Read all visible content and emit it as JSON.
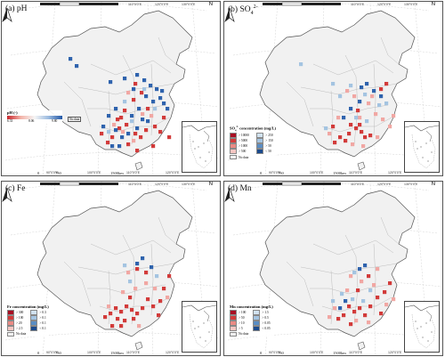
{
  "panels": [
    {
      "id": "ph",
      "title_main": "(a) pH",
      "title_sup": "",
      "legend": {
        "title": "pH (-)",
        "type": "gradient",
        "ticks": [
          "6.33",
          "8.06",
          "9.80"
        ],
        "colors": [
          "#c8242b",
          "#f3b4a9",
          "#f5f5f5",
          "#9bbbe0",
          "#2458a6"
        ],
        "nodata": "No data"
      },
      "cells": {
        "red": [
          [
            148,
            90
          ],
          [
            155,
            100
          ],
          [
            146,
            108
          ],
          [
            162,
            118
          ],
          [
            138,
            136
          ],
          [
            130,
            140
          ],
          [
            148,
            146
          ],
          [
            154,
            150
          ],
          [
            160,
            142
          ],
          [
            170,
            138
          ],
          [
            176,
            144
          ],
          [
            140,
            158
          ],
          [
            122,
            150
          ],
          [
            117,
            156
          ],
          [
            136,
            120
          ],
          [
            168,
            160
          ],
          [
            180,
            128
          ],
          [
            186,
            150
          ],
          [
            150,
            165
          ],
          [
            128,
            130
          ],
          [
            132,
            128
          ],
          [
            110,
            146
          ]
        ],
        "blue": [
          [
            75,
            62
          ],
          [
            82,
            70
          ],
          [
            120,
            88
          ],
          [
            136,
            84
          ],
          [
            150,
            80
          ],
          [
            158,
            86
          ],
          [
            165,
            92
          ],
          [
            172,
            96
          ],
          [
            160,
            104
          ],
          [
            168,
            110
          ],
          [
            176,
            106
          ],
          [
            152,
            118
          ],
          [
            144,
            126
          ],
          [
            126,
            118
          ],
          [
            118,
            126
          ],
          [
            126,
            142
          ],
          [
            133,
            150
          ],
          [
            150,
            140
          ],
          [
            156,
            130
          ],
          [
            162,
            132
          ],
          [
            140,
            146
          ],
          [
            112,
            138
          ],
          [
            122,
            160
          ],
          [
            130,
            160
          ],
          [
            184,
            118
          ],
          [
            178,
            98
          ],
          [
            180,
            112
          ],
          [
            146,
            96
          ]
        ],
        "lightred": [
          [
            140,
            100
          ],
          [
            156,
            124
          ],
          [
            166,
            126
          ],
          [
            124,
            136
          ],
          [
            134,
            144
          ],
          [
            146,
            154
          ]
        ],
        "lightblue": [
          [
            158,
            96
          ],
          [
            170,
            118
          ],
          [
            136,
            110
          ],
          [
            144,
            132
          ],
          [
            118,
            144
          ]
        ]
      }
    },
    {
      "id": "so4",
      "title_main": "(b) SO",
      "title_sup": "4",
      "title_sup2": "2-",
      "legend": {
        "title_main": "SO",
        "title_sub": "4",
        "title_sup": "2-",
        "title_rest": " concentration (mg/L)",
        "type": "classes",
        "items": [
          {
            "label": "> 10000",
            "color": "#a80d22"
          },
          {
            "label": "> 250",
            "color": "#d1e2f0"
          },
          {
            "label": "> 5000",
            "color": "#d23b3a"
          },
          {
            "label": "> 150",
            "color": "#a4c4e1"
          },
          {
            "label": "> 1000",
            "color": "#ea8a84"
          },
          {
            "label": "> 50",
            "color": "#5a8dc3"
          },
          {
            "label": "> 500",
            "color": "#f6c6c2"
          },
          {
            "label": "< 50",
            "color": "#1b4a8c"
          }
        ],
        "nodata": "No data"
      },
      "cells": {
        "red": [
          [
            140,
            136
          ],
          [
            146,
            140
          ],
          [
            152,
            144
          ],
          [
            150,
            136
          ],
          [
            138,
            146
          ],
          [
            128,
            150
          ],
          [
            122,
            156
          ],
          [
            156,
            150
          ],
          [
            162,
            148
          ],
          [
            148,
            120
          ],
          [
            174,
            96
          ],
          [
            180,
            90
          ],
          [
            120,
            138
          ],
          [
            134,
            154
          ]
        ],
        "blue": [
          [
            152,
            94
          ],
          [
            158,
            90
          ],
          [
            166,
            98
          ],
          [
            174,
            104
          ],
          [
            150,
            110
          ],
          [
            140,
            118
          ],
          [
            132,
            128
          ]
        ],
        "lightred": [
          [
            136,
            98
          ],
          [
            144,
            104
          ],
          [
            160,
            112
          ],
          [
            168,
            124
          ],
          [
            176,
            130
          ],
          [
            126,
            128
          ],
          [
            116,
            146
          ],
          [
            142,
            158
          ],
          [
            154,
            160
          ],
          [
            170,
            150
          ],
          [
            184,
            138
          ],
          [
            188,
            126
          ],
          [
            150,
            128
          ],
          [
            164,
            104
          ]
        ],
        "lightblue": [
          [
            84,
            68
          ],
          [
            120,
            90
          ],
          [
            128,
            104
          ],
          [
            140,
            92
          ],
          [
            156,
            102
          ],
          [
            172,
            114
          ],
          [
            180,
            112
          ],
          [
            146,
            128
          ],
          [
            158,
            132
          ],
          [
            112,
            140
          ]
        ]
      }
    },
    {
      "id": "fe",
      "title_main": "(c) Fe",
      "title_sup": "",
      "legend": {
        "title": "Fe concentration (mg/L)",
        "type": "classes",
        "items": [
          {
            "label": "> 300",
            "color": "#a80d22"
          },
          {
            "label": "> 0.3",
            "color": "#d1e2f0"
          },
          {
            "label": "> 100",
            "color": "#d23b3a"
          },
          {
            "label": "> 0.1",
            "color": "#a4c4e1"
          },
          {
            "label": "> 20",
            "color": "#ea8a84"
          },
          {
            "label": "> 0.1",
            "color": "#5a8dc3"
          },
          {
            "label": "> 2.5",
            "color": "#f6c6c2"
          },
          {
            "label": "< 0.1",
            "color": "#1b4a8c"
          }
        ],
        "nodata": "No data"
      },
      "cells": {
        "red": [
          [
            126,
            140
          ],
          [
            132,
            144
          ],
          [
            138,
            138
          ],
          [
            144,
            142
          ],
          [
            150,
            146
          ],
          [
            128,
            152
          ],
          [
            136,
            154
          ],
          [
            146,
            152
          ],
          [
            120,
            146
          ],
          [
            114,
            150
          ],
          [
            156,
            140
          ],
          [
            162,
            130
          ],
          [
            168,
            138
          ],
          [
            174,
            148
          ],
          [
            180,
            118
          ],
          [
            186,
            104
          ],
          [
            150,
            96
          ],
          [
            160,
            100
          ],
          [
            142,
            128
          ],
          [
            176,
            132
          ],
          [
            122,
            160
          ],
          [
            132,
            160
          ]
        ],
        "blue": [
          [
            150,
            90
          ],
          [
            156,
            84
          ],
          [
            166,
            94
          ]
        ],
        "lightred": [
          [
            134,
            122
          ],
          [
            148,
            118
          ],
          [
            160,
            112
          ],
          [
            170,
            118
          ],
          [
            184,
            128
          ],
          [
            140,
            100
          ],
          [
            118,
            138
          ],
          [
            152,
            160
          ]
        ],
        "lightblue": [
          [
            136,
            92
          ],
          [
            142,
            110
          ],
          [
            172,
            104
          ]
        ]
      }
    },
    {
      "id": "mn",
      "title_main": "(d) Mn",
      "title_sup": "",
      "legend": {
        "title": "Mn concentration (mg/L)",
        "type": "classes",
        "items": [
          {
            "label": "> 100",
            "color": "#a80d22"
          },
          {
            "label": "> 1.5",
            "color": "#d1e2f0"
          },
          {
            "label": "> 50",
            "color": "#d23b3a"
          },
          {
            "label": "> 0.5",
            "color": "#a4c4e1"
          },
          {
            "label": "> 10",
            "color": "#ea8a84"
          },
          {
            "label": "> 0.05",
            "color": "#5a8dc3"
          },
          {
            "label": "> 5",
            "color": "#f6c6c2"
          },
          {
            "label": "< 0.05",
            "color": "#1b4a8c"
          }
        ],
        "nodata": "No data"
      },
      "cells": {
        "red": [
          [
            138,
            138
          ],
          [
            144,
            144
          ],
          [
            150,
            140
          ],
          [
            132,
            148
          ],
          [
            126,
            152
          ],
          [
            156,
            148
          ],
          [
            162,
            138
          ],
          [
            170,
            128
          ],
          [
            178,
            122
          ],
          [
            184,
            112
          ],
          [
            160,
            104
          ],
          [
            148,
            120
          ],
          [
            174,
            146
          ],
          [
            140,
            158
          ]
        ],
        "blue": [
          [
            150,
            96
          ],
          [
            156,
            92
          ],
          [
            128,
            140
          ],
          [
            134,
            132
          ]
        ],
        "lightred": [
          [
            140,
            104
          ],
          [
            152,
            110
          ],
          [
            166,
            114
          ],
          [
            180,
            136
          ],
          [
            188,
            130
          ],
          [
            122,
            140
          ],
          [
            116,
            150
          ],
          [
            146,
            154
          ],
          [
            160,
            156
          ],
          [
            170,
            96
          ],
          [
            136,
            120
          ]
        ],
        "lightblue": [
          [
            144,
            100
          ],
          [
            162,
            120
          ],
          [
            142,
            130
          ],
          [
            154,
            132
          ],
          [
            120,
            132
          ],
          [
            130,
            124
          ]
        ]
      }
    }
  ],
  "map": {
    "lon_top": [
      "70°0'0\"E",
      "80°0'0\"E",
      "90°0'0\"E",
      "100°0'0\"E",
      "110°0'0\"E",
      "120°0'0\"E",
      "130°0'0\"E",
      "140°0'0\"E"
    ],
    "lon_bottom": [
      "90°0'0\"E",
      "100°0'0\"E",
      "110°0'0\"E",
      "120°0'0\"E"
    ],
    "scale": [
      "0",
      "750",
      "1500km"
    ],
    "north": "N",
    "colors": {
      "red": "#d23b3a",
      "lightred": "#f1a7a3",
      "blue": "#2f63ad",
      "lightblue": "#a4c4e1",
      "land": "#f1f1f1",
      "border": "#b0b0b0"
    }
  }
}
